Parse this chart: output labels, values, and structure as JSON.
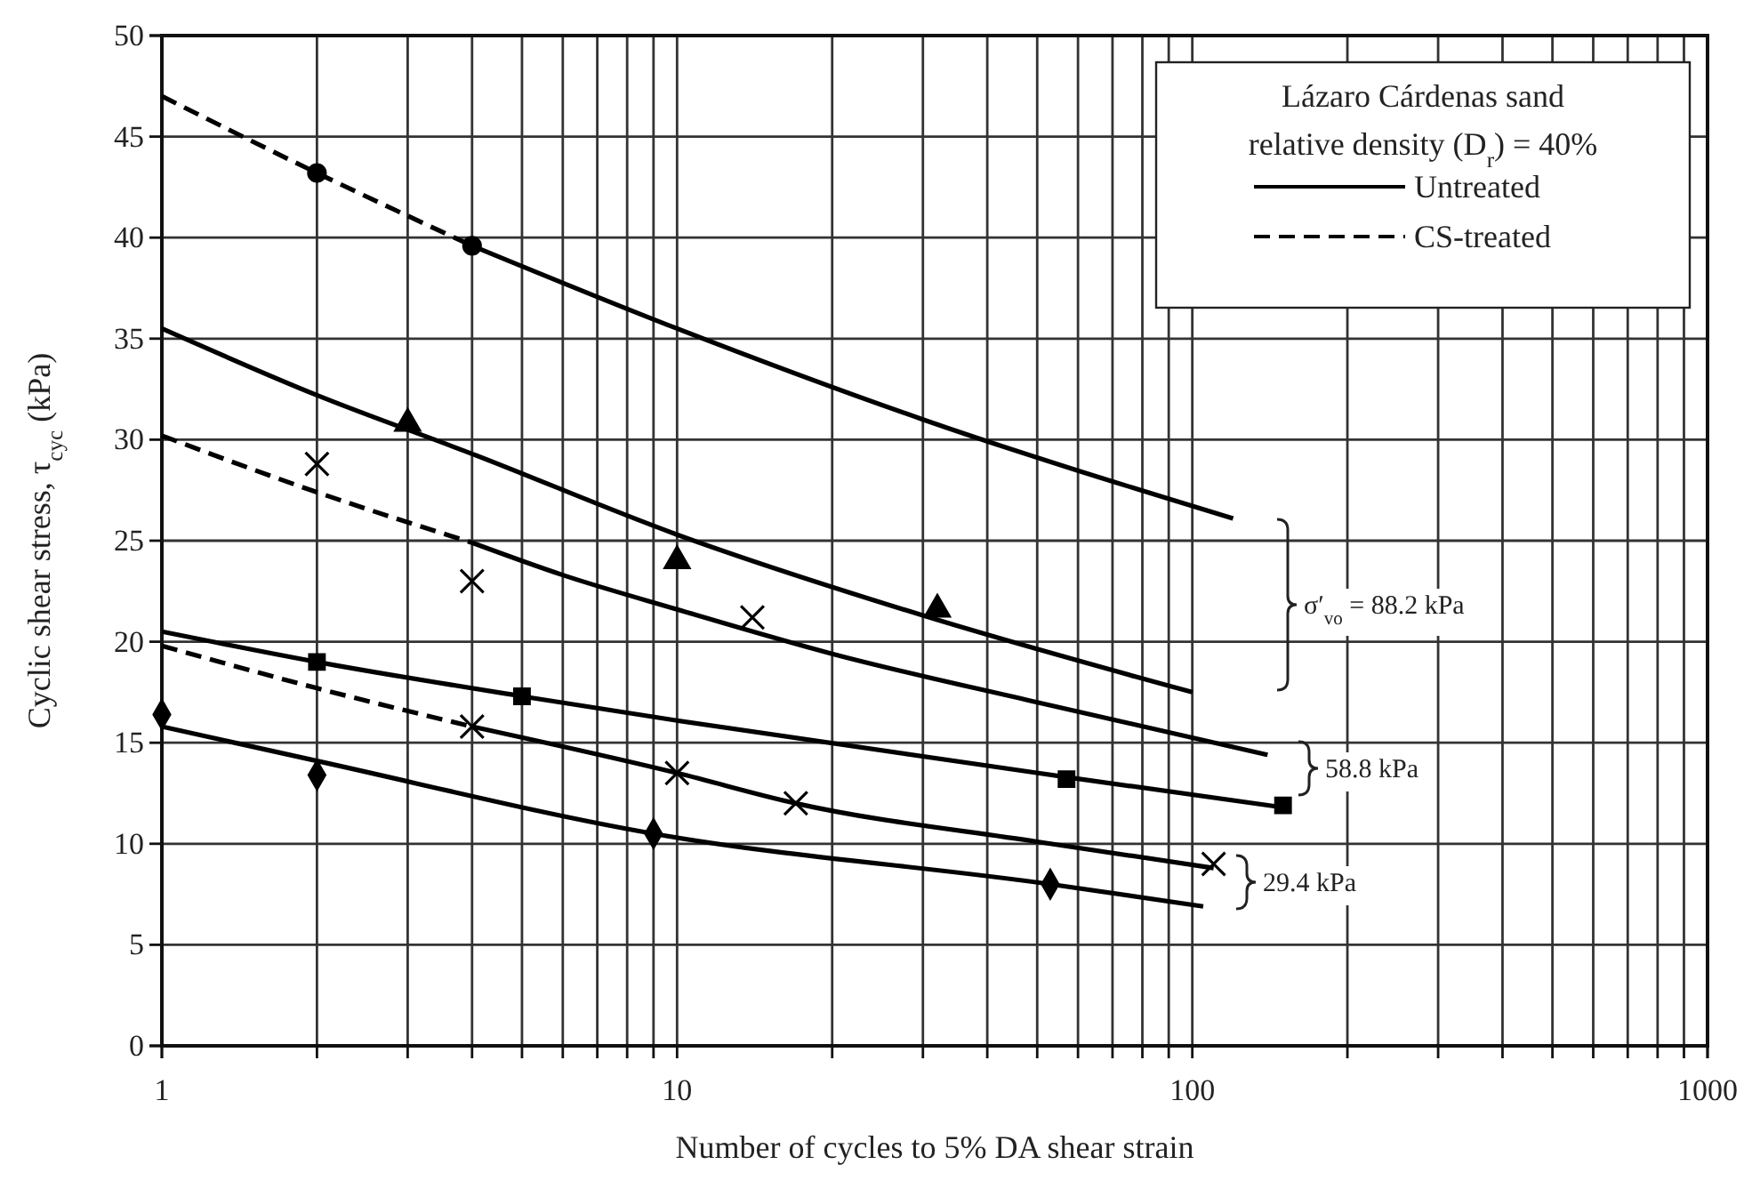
{
  "chart_data": {
    "type": "line",
    "xlabel": "Number of cycles to 5% DA shear strain",
    "ylabel": "Cyclic shear stress, τ$_{cyc}$ (kPa)",
    "legend_title": "Lázaro Cárdenas sand\nrelative density (D$_{r}$) = 40%",
    "log": "x",
    "grid": true,
    "legend": "top right",
    "xlim": [
      1,
      1000
    ],
    "ylim": [
      0,
      50
    ],
    "xticks": [
      1,
      {
        "value": 2,
        "label": null
      },
      {
        "value": 3,
        "label": null
      },
      {
        "value": 4,
        "label": null
      },
      {
        "value": 5,
        "label": null
      },
      {
        "value": 6,
        "label": null
      },
      {
        "value": 7,
        "label": null
      },
      {
        "value": 8,
        "label": null
      },
      {
        "value": 9,
        "label": null
      },
      10,
      {
        "value": 20,
        "label": null
      },
      {
        "value": 30,
        "label": null
      },
      {
        "value": 40,
        "label": null
      },
      {
        "value": 50,
        "label": null
      },
      {
        "value": 60,
        "label": null
      },
      {
        "value": 70,
        "label": null
      },
      {
        "value": 80,
        "label": null
      },
      {
        "value": 90,
        "label": null
      },
      100,
      {
        "value": 200,
        "label": null
      },
      {
        "value": 300,
        "label": null
      },
      {
        "value": 400,
        "label": null
      },
      {
        "value": 500,
        "label": null
      },
      {
        "value": 600,
        "label": null
      },
      {
        "value": 700,
        "label": null
      },
      {
        "value": 800,
        "label": null
      },
      {
        "value": 900,
        "label": null
      },
      1000
    ],
    "yticks": [
      0,
      5,
      10,
      15,
      20,
      25,
      30,
      35,
      40,
      45,
      50
    ],
    "series": [
      {
        "line_style": "solid",
        "color": "#000000",
        "name": "Untreated",
        "x": [
          4,
          10,
          30,
          120
        ],
        "values": [
          39.6,
          35.5,
          31,
          26.1
        ]
      },
      {
        "line_style": "dashed",
        "color": "#000000",
        "name": "CS-treated",
        "x": [
          1,
          2,
          4
        ],
        "values": [
          47,
          43.2,
          39.6
        ]
      },
      {
        "line_style": "solid",
        "color": "#000000",
        "x": [
          1,
          2,
          4,
          10,
          30,
          100
        ],
        "values": [
          35.5,
          32.2,
          29.3,
          25.3,
          21.3,
          17.5
        ]
      },
      {
        "line_style": "dashed",
        "color": "#000000",
        "x": [
          1,
          2,
          4
        ],
        "values": [
          30.2,
          27.4,
          24.9
        ]
      },
      {
        "line_style": "solid",
        "color": "#000000",
        "x": [
          4,
          6,
          10,
          20,
          50,
          140
        ],
        "values": [
          24.9,
          23.3,
          21.6,
          19.4,
          17,
          14.4
        ]
      },
      {
        "line_style": "solid",
        "color": "#000000",
        "x": [
          1,
          2,
          5,
          10,
          57,
          150
        ],
        "values": [
          20.5,
          19,
          17.3,
          16.1,
          13.3,
          11.8
        ]
      },
      {
        "line_style": "dashed",
        "color": "#000000",
        "x": [
          1,
          2,
          4
        ],
        "values": [
          19.8,
          17.7,
          15.8
        ]
      },
      {
        "line_style": "solid",
        "color": "#000000",
        "x": [
          4,
          10,
          17,
          50,
          110
        ],
        "values": [
          15.8,
          13.5,
          12,
          10.1,
          8.8
        ]
      },
      {
        "line_style": "solid",
        "color": "#000000",
        "x": [
          1,
          2,
          9,
          53,
          105
        ],
        "values": [
          15.8,
          14.1,
          10.5,
          8,
          6.9
        ]
      },
      {
        "type": "scatter",
        "marker": "circle",
        "color": "#000000",
        "x": [
          2,
          4
        ],
        "values": [
          43.2,
          39.6
        ]
      },
      {
        "type": "scatter",
        "marker": "triangle",
        "color": "#000000",
        "x": [
          3,
          10,
          32
        ],
        "values": [
          30.8,
          24,
          21.6
        ]
      },
      {
        "type": "scatter",
        "marker": "cross",
        "color": "#000000",
        "x": [
          2,
          4,
          14
        ],
        "values": [
          28.8,
          23,
          21.2
        ]
      },
      {
        "type": "scatter",
        "marker": "square",
        "color": "#000000",
        "x": [
          2,
          5,
          57,
          150
        ],
        "values": [
          19,
          17.3,
          13.2,
          11.9
        ]
      },
      {
        "type": "scatter",
        "marker": "cross",
        "color": "#000000",
        "x": [
          4,
          10,
          17,
          110
        ],
        "values": [
          15.8,
          13.5,
          12,
          9
        ]
      },
      {
        "type": "scatter",
        "marker": "diamond",
        "color": "#000000",
        "x": [
          1,
          2,
          9,
          53
        ],
        "values": [
          16.4,
          13.4,
          10.5,
          8
        ]
      }
    ],
    "annotations": [
      "σ′$_{vo}$ = 88.2 kPa",
      "58.8 kPa",
      "29.4 kPa"
    ]
  }
}
